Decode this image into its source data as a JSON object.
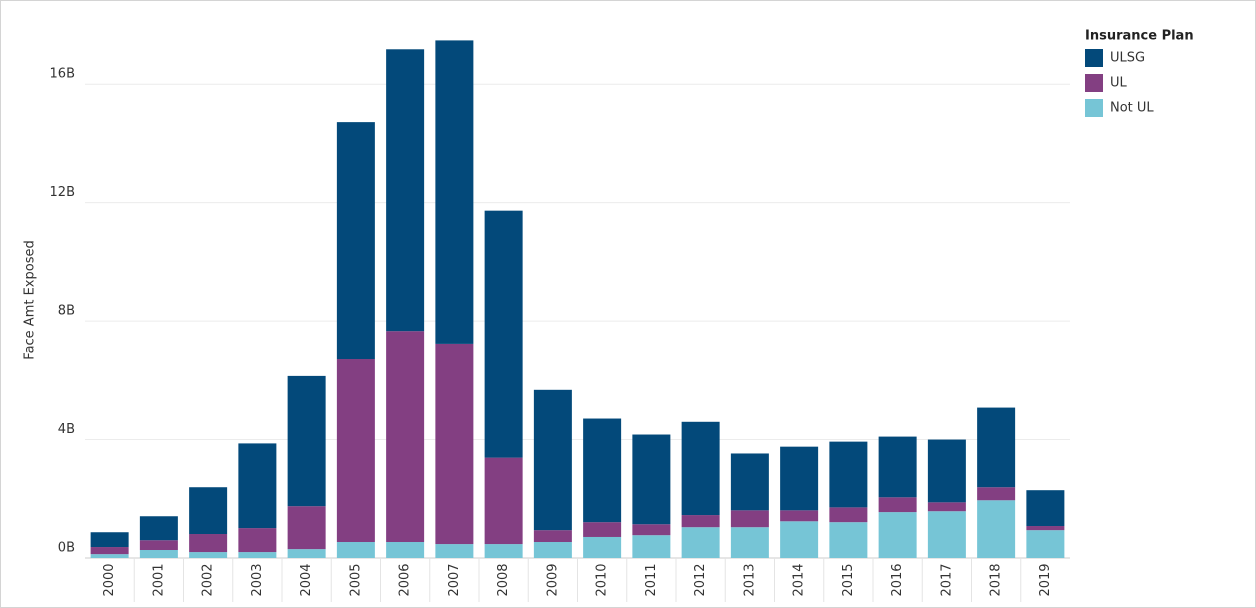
{
  "chart_data": {
    "type": "stacked_bar",
    "y_label": "Face Amt Exposed",
    "legend_title": "Insurance Plan",
    "categories": [
      "2000",
      "2001",
      "2002",
      "2003",
      "2004",
      "2005",
      "2006",
      "2007",
      "2008",
      "2009",
      "2010",
      "2011",
      "2012",
      "2013",
      "2014",
      "2015",
      "2016",
      "2017",
      "2018",
      "2019"
    ],
    "series": [
      {
        "name": "ULSG",
        "color": "#03497a",
        "values": [
          0.5,
          0.81,
          1.58,
          2.86,
          4.4,
          8.0,
          9.52,
          10.25,
          8.34,
          4.74,
          3.5,
          3.03,
          3.15,
          1.92,
          2.15,
          2.22,
          2.05,
          2.12,
          2.69,
          1.21
        ]
      },
      {
        "name": "UL",
        "color": "#833f82",
        "values": [
          0.24,
          0.33,
          0.61,
          0.81,
          1.45,
          6.18,
          7.12,
          6.76,
          2.92,
          0.4,
          0.5,
          0.37,
          0.41,
          0.57,
          0.37,
          0.5,
          0.5,
          0.3,
          0.44,
          0.14
        ]
      },
      {
        "name": "Not UL",
        "color": "#76c5d6",
        "values": [
          0.13,
          0.27,
          0.2,
          0.2,
          0.3,
          0.54,
          0.54,
          0.47,
          0.47,
          0.54,
          0.71,
          0.77,
          1.04,
          1.04,
          1.24,
          1.21,
          1.55,
          1.58,
          1.95,
          0.94
        ]
      }
    ],
    "ylim": [
      0,
      18
    ],
    "yticks": [
      {
        "value": 0,
        "label": "0B"
      },
      {
        "value": 4,
        "label": "4B"
      },
      {
        "value": 8,
        "label": "8B"
      },
      {
        "value": 12,
        "label": "12B"
      },
      {
        "value": 16,
        "label": "16B"
      }
    ],
    "grid": true,
    "legend_position": "right"
  }
}
